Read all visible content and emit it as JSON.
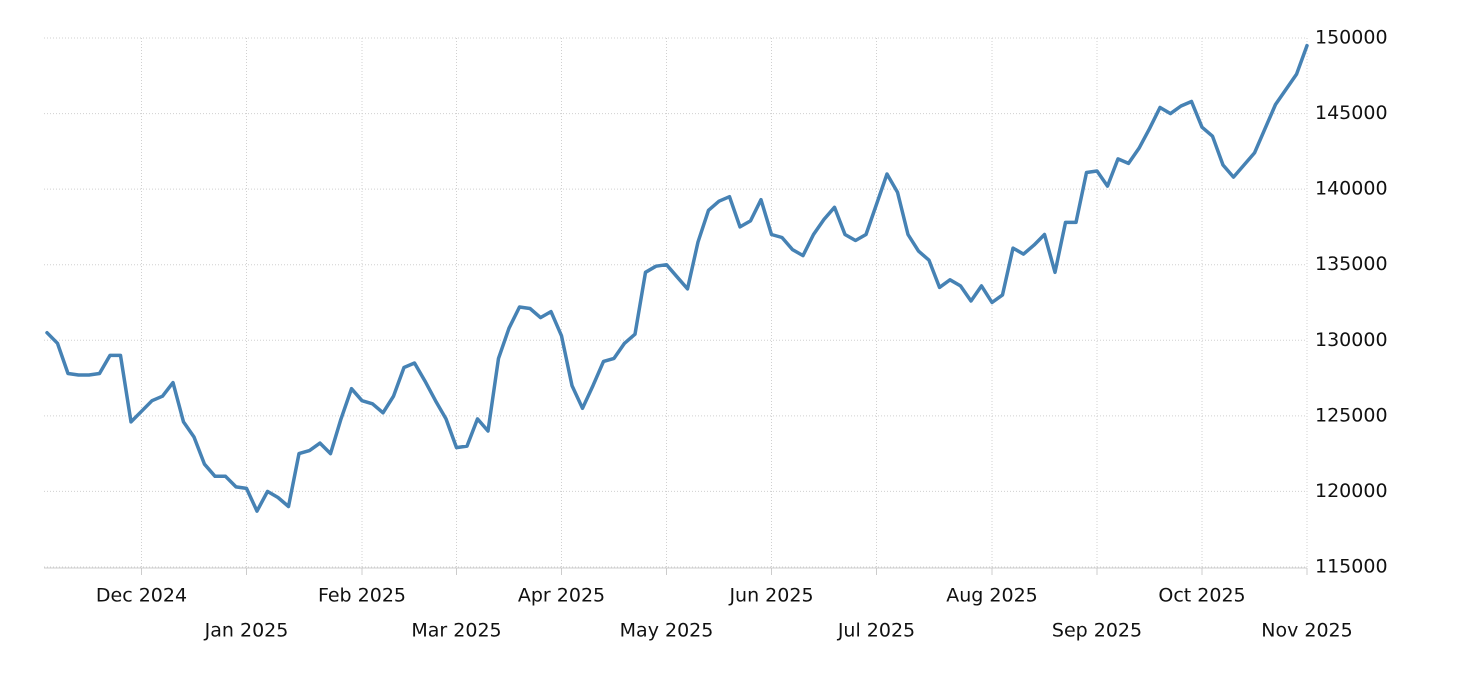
{
  "chart_data": {
    "type": "line",
    "categories": [
      null,
      null,
      null,
      null,
      null,
      null,
      null,
      null,
      null,
      "Dec 2024",
      null,
      null,
      null,
      null,
      null,
      null,
      null,
      null,
      null,
      "Jan 2025",
      null,
      null,
      null,
      null,
      null,
      null,
      null,
      null,
      null,
      null,
      "Feb 2025",
      null,
      null,
      null,
      null,
      null,
      null,
      null,
      null,
      "Mar 2025",
      null,
      null,
      null,
      null,
      null,
      null,
      null,
      null,
      null,
      "Apr 2025",
      null,
      null,
      null,
      null,
      null,
      null,
      null,
      null,
      null,
      "May 2025",
      null,
      null,
      null,
      null,
      null,
      null,
      null,
      null,
      null,
      "Jun 2025",
      null,
      null,
      null,
      null,
      null,
      null,
      null,
      null,
      null,
      "Jul 2025",
      null,
      null,
      null,
      null,
      null,
      null,
      null,
      null,
      null,
      null,
      "Aug 2025",
      null,
      null,
      null,
      null,
      null,
      null,
      null,
      null,
      null,
      "Sep 2025",
      null,
      null,
      null,
      null,
      null,
      null,
      null,
      null,
      null,
      "Oct 2025",
      null,
      null,
      null,
      null,
      null,
      null,
      null,
      null,
      null,
      "Nov 2025"
    ],
    "series": [
      {
        "color": "#4682b4",
        "values": [
          130500,
          129800,
          127800,
          127700,
          127700,
          127800,
          129000,
          129000,
          124600,
          125300,
          126000,
          126300,
          127200,
          124600,
          123600,
          121800,
          121000,
          121000,
          120300,
          120200,
          118700,
          120000,
          119600,
          119000,
          122500,
          122700,
          123200,
          122500,
          124800,
          126800,
          126000,
          125800,
          125200,
          126300,
          128200,
          128500,
          127300,
          126000,
          124800,
          122900,
          123000,
          124800,
          124000,
          128800,
          130800,
          132200,
          132100,
          131500,
          131900,
          130300,
          127000,
          125500,
          127000,
          128600,
          128800,
          129800,
          130400,
          134500,
          134900,
          135000,
          134200,
          133400,
          136500,
          138600,
          139200,
          139500,
          137500,
          137900,
          139300,
          137000,
          136800,
          136000,
          135600,
          137000,
          138000,
          138800,
          137000,
          136600,
          137000,
          139000,
          141000,
          139800,
          137000,
          135900,
          135300,
          133500,
          134000,
          133600,
          132600,
          133600,
          132500,
          133000,
          136100,
          135700,
          136300,
          137000,
          134500,
          137800,
          137800,
          141100,
          141200,
          140200,
          142000,
          141700,
          142700,
          144000,
          145400,
          145000,
          145500,
          145800,
          144100,
          143500,
          141600,
          140800,
          141600,
          142400,
          144000,
          145600,
          146600,
          147600,
          149500
        ]
      }
    ],
    "ylim": [
      115000,
      150000
    ],
    "yticks": [
      115000,
      120000,
      125000,
      130000,
      135000,
      140000,
      145000,
      150000
    ],
    "grid": true
  }
}
